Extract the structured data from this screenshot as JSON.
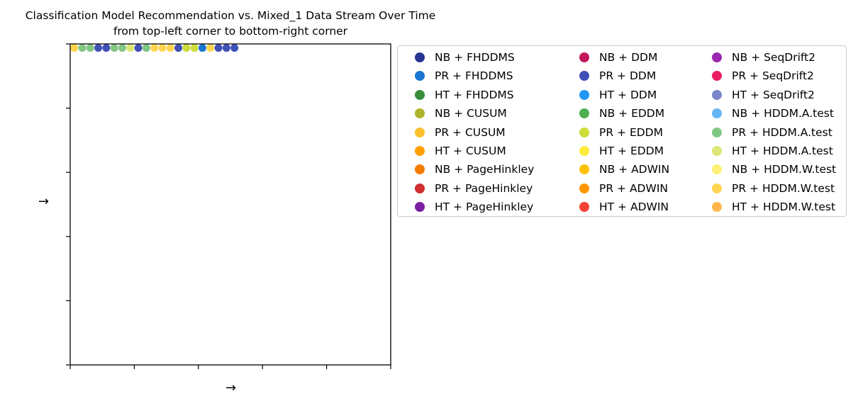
{
  "chart_data": {
    "type": "scatter",
    "title": "Classification Model Recommendation vs. Mixed_1 Data Stream Over Time",
    "subtitle": "from top-left corner to bottom-right corner",
    "xlabel": "→",
    "ylabel": "→",
    "xlim": [
      0,
      40
    ],
    "ylim": [
      0,
      40
    ],
    "grid": false,
    "legend_placement": "outside-right",
    "legend_columns": 3,
    "series": [
      {
        "name": "NB + FHDDMS",
        "color": "#283593"
      },
      {
        "name": "PR + FHDDMS",
        "color": "#1976d2"
      },
      {
        "name": "HT + FHDDMS",
        "color": "#388e3c"
      },
      {
        "name": "NB + CUSUM",
        "color": "#afb42b"
      },
      {
        "name": "PR + CUSUM",
        "color": "#fbc02d"
      },
      {
        "name": "HT + CUSUM",
        "color": "#ffa000"
      },
      {
        "name": "NB + PageHinkley",
        "color": "#f57c00"
      },
      {
        "name": "PR + PageHinkley",
        "color": "#d32f2f"
      },
      {
        "name": "HT + PageHinkley",
        "color": "#7b1fa2"
      },
      {
        "name": "NB + DDM",
        "color": "#c2185b"
      },
      {
        "name": "PR + DDM",
        "color": "#3f51b5"
      },
      {
        "name": "HT + DDM",
        "color": "#2196f3"
      },
      {
        "name": "NB + EDDM",
        "color": "#4caf50"
      },
      {
        "name": "PR + EDDM",
        "color": "#cddc39"
      },
      {
        "name": "HT + EDDM",
        "color": "#ffeb3b"
      },
      {
        "name": "NB + ADWIN",
        "color": "#ffc107"
      },
      {
        "name": "PR + ADWIN",
        "color": "#ff9800"
      },
      {
        "name": "HT + ADWIN",
        "color": "#f44336"
      },
      {
        "name": "NB + SeqDrift2",
        "color": "#9c27b0"
      },
      {
        "name": "PR + SeqDrift2",
        "color": "#e91e63"
      },
      {
        "name": "HT + SeqDrift2",
        "color": "#7986cb"
      },
      {
        "name": "NB + HDDM.A.test",
        "color": "#64b5f6"
      },
      {
        "name": "PR + HDDM.A.test",
        "color": "#81c784"
      },
      {
        "name": "HT + HDDM.A.test",
        "color": "#dce775"
      },
      {
        "name": "NB + HDDM.W.test",
        "color": "#fff176"
      },
      {
        "name": "PR + HDDM.W.test",
        "color": "#ffd54f"
      },
      {
        "name": "HT + HDDM.W.test",
        "color": "#ffb74d"
      }
    ],
    "points": [
      {
        "x": 0.5,
        "y": 39.5,
        "series": "PR + HDDM.W.test"
      },
      {
        "x": 1.5,
        "y": 39.5,
        "series": "PR + HDDM.A.test"
      },
      {
        "x": 2.5,
        "y": 39.5,
        "series": "PR + HDDM.A.test"
      },
      {
        "x": 3.5,
        "y": 39.5,
        "series": "PR + DDM"
      },
      {
        "x": 4.5,
        "y": 39.5,
        "series": "PR + DDM"
      },
      {
        "x": 5.5,
        "y": 39.5,
        "series": "PR + HDDM.A.test"
      },
      {
        "x": 6.5,
        "y": 39.5,
        "series": "PR + HDDM.A.test"
      },
      {
        "x": 7.5,
        "y": 39.5,
        "series": "HT + HDDM.A.test"
      },
      {
        "x": 8.5,
        "y": 39.5,
        "series": "PR + DDM"
      },
      {
        "x": 9.5,
        "y": 39.5,
        "series": "PR + HDDM.A.test"
      },
      {
        "x": 10.5,
        "y": 39.5,
        "series": "PR + HDDM.W.test"
      },
      {
        "x": 11.5,
        "y": 39.5,
        "series": "PR + HDDM.W.test"
      },
      {
        "x": 12.5,
        "y": 39.5,
        "series": "PR + HDDM.W.test"
      },
      {
        "x": 13.5,
        "y": 39.5,
        "series": "PR + DDM"
      },
      {
        "x": 14.5,
        "y": 39.5,
        "series": "PR + EDDM"
      },
      {
        "x": 15.5,
        "y": 39.5,
        "series": "PR + EDDM"
      },
      {
        "x": 16.5,
        "y": 39.5,
        "series": "PR + FHDDMS"
      },
      {
        "x": 17.5,
        "y": 39.5,
        "series": "PR + HDDM.W.test"
      },
      {
        "x": 18.5,
        "y": 39.5,
        "series": "PR + DDM"
      },
      {
        "x": 19.5,
        "y": 39.5,
        "series": "PR + DDM"
      },
      {
        "x": 20.5,
        "y": 39.5,
        "series": "PR + DDM"
      }
    ]
  }
}
